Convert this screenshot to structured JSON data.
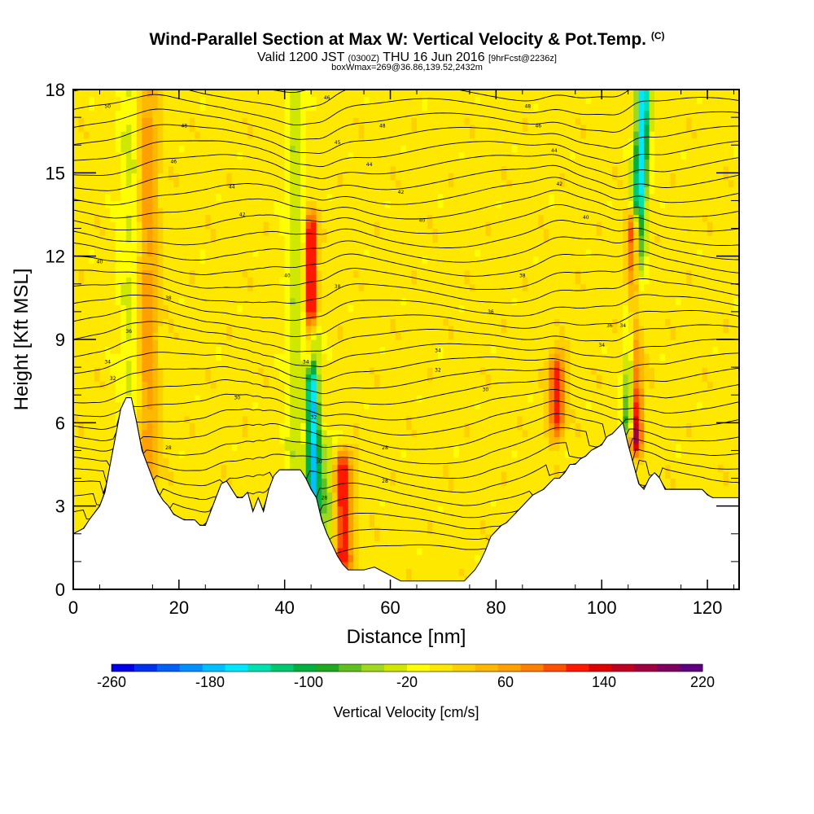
{
  "header": {
    "title": "Wind-Parallel Section at Max W: Vertical Velocity & Pot.Temp.",
    "title_mark": "(C)",
    "valid_prefix": "Valid 1200 JST",
    "valid_utc": "(0300Z)",
    "valid_date": "THU 16 Jun 2016",
    "forecast": "[9hrFcst@2236z]",
    "boxline": "boxWmax=269@36.86,139.52,2432m"
  },
  "chart_data": {
    "type": "heatmap",
    "xlabel": "Distance [nm]",
    "ylabel": "Height [Kft MSL]",
    "xlim": [
      0,
      126
    ],
    "ylim": [
      0,
      18
    ],
    "x_ticks": [
      "0",
      "20",
      "40",
      "60",
      "80",
      "100",
      "120"
    ],
    "y_ticks": [
      "0",
      "3",
      "6",
      "9",
      "12",
      "15",
      "18"
    ],
    "x_tick_values": [
      0,
      20,
      40,
      60,
      80,
      100,
      120
    ],
    "y_tick_values": [
      0,
      3,
      6,
      9,
      12,
      15,
      18
    ],
    "background_field": "Vertical Velocity [cm/s]",
    "contours": "Pot.Temp.",
    "terrain": [
      [
        0,
        2
      ],
      [
        2,
        2.2
      ],
      [
        3,
        2.5
      ],
      [
        5,
        3
      ],
      [
        6,
        3.5
      ],
      [
        7,
        4.5
      ],
      [
        8,
        5.5
      ],
      [
        9,
        6.5
      ],
      [
        10,
        6.9
      ],
      [
        11,
        6.9
      ],
      [
        12,
        6
      ],
      [
        13,
        5
      ],
      [
        14,
        4.5
      ],
      [
        15,
        4
      ],
      [
        16,
        3.5
      ],
      [
        17,
        3.2
      ],
      [
        18,
        3
      ],
      [
        19,
        2.7
      ],
      [
        21,
        2.5
      ],
      [
        23,
        2.5
      ],
      [
        24,
        2.3
      ],
      [
        25,
        2.3
      ],
      [
        26,
        2.8
      ],
      [
        27,
        3.3
      ],
      [
        28,
        3.8
      ],
      [
        29,
        3.9
      ],
      [
        30,
        3.6
      ],
      [
        31,
        3.3
      ],
      [
        32,
        3.3
      ],
      [
        33,
        3.5
      ],
      [
        34,
        2.8
      ],
      [
        35,
        3.3
      ],
      [
        36,
        2.8
      ],
      [
        37,
        3.6
      ],
      [
        38,
        4.1
      ],
      [
        39,
        4.3
      ],
      [
        41,
        4.3
      ],
      [
        43,
        4.3
      ],
      [
        44,
        4
      ],
      [
        45,
        3.6
      ],
      [
        46,
        3.3
      ],
      [
        47,
        2.5
      ],
      [
        48,
        2
      ],
      [
        49,
        1.6
      ],
      [
        50,
        1.2
      ],
      [
        51,
        0.9
      ],
      [
        52,
        0.7
      ],
      [
        53,
        0.7
      ],
      [
        55,
        0.7
      ],
      [
        57,
        0.8
      ],
      [
        59,
        0.6
      ],
      [
        60,
        0.5
      ],
      [
        61,
        0.4
      ],
      [
        62,
        0.3
      ],
      [
        64,
        0.3
      ],
      [
        66,
        0.3
      ],
      [
        68,
        0.3
      ],
      [
        70,
        0.3
      ],
      [
        72,
        0.3
      ],
      [
        74,
        0.3
      ],
      [
        75,
        0.5
      ],
      [
        76,
        0.7
      ],
      [
        77,
        1
      ],
      [
        78,
        1.4
      ],
      [
        79,
        1.9
      ],
      [
        80,
        2.1
      ],
      [
        81,
        2.3
      ],
      [
        82,
        2.4
      ],
      [
        83,
        2.6
      ],
      [
        84,
        2.8
      ],
      [
        85,
        3
      ],
      [
        86,
        3.2
      ],
      [
        87,
        3.4
      ],
      [
        88,
        3.5
      ],
      [
        89,
        3.6
      ],
      [
        90,
        3.8
      ],
      [
        91,
        4
      ],
      [
        92,
        4
      ],
      [
        93,
        4.2
      ],
      [
        94,
        4.5
      ],
      [
        95,
        4.5
      ],
      [
        96,
        4.7
      ],
      [
        97,
        4.8
      ],
      [
        98,
        5
      ],
      [
        99,
        5.1
      ],
      [
        100,
        5.2
      ],
      [
        101,
        5.5
      ],
      [
        102,
        5.6
      ],
      [
        103,
        5.8
      ],
      [
        104,
        6
      ],
      [
        105,
        5.2
      ],
      [
        106,
        4.5
      ],
      [
        107,
        3.8
      ],
      [
        108,
        3.6
      ],
      [
        109,
        4
      ],
      [
        110,
        4.2
      ],
      [
        111,
        4
      ],
      [
        112,
        3.6
      ],
      [
        113,
        3.6
      ],
      [
        115,
        3.6
      ],
      [
        117,
        3.6
      ],
      [
        119,
        3.6
      ],
      [
        120,
        3.4
      ],
      [
        121,
        3.3
      ],
      [
        123,
        3.3
      ],
      [
        126,
        3.3
      ]
    ],
    "bands": [
      {
        "x": 11,
        "x_top": 11,
        "half_width": 2.2,
        "intensity": -35
      },
      {
        "x": 14,
        "x_top": 14,
        "half_width": 2.0,
        "intensity": 60
      },
      {
        "x": 45.5,
        "x_top": 45,
        "half_width": 1.2,
        "intensity": -170,
        "y0": 3,
        "y1": 9
      },
      {
        "x": 45,
        "x_top": 45,
        "half_width": 1.0,
        "intensity": 150,
        "y0": 8.5,
        "y1": 13
      },
      {
        "x": 48,
        "x_top": 48,
        "half_width": 2.0,
        "intensity": -60,
        "y0": 1.5,
        "y1": 5
      },
      {
        "x": 51,
        "x_top": 51,
        "half_width": 1.8,
        "intensity": 120,
        "y0": 1,
        "y1": 4.5
      },
      {
        "x": 104,
        "x_top": 108,
        "half_width": 1.3,
        "intensity": -170,
        "y0": 6,
        "y1": 18
      },
      {
        "x": 106.5,
        "x_top": 106,
        "half_width": 1.2,
        "intensity": 200,
        "y0": 5.5,
        "y1": 13
      },
      {
        "x": 91.5,
        "x_top": 91.5,
        "half_width": 1.5,
        "intensity": 110,
        "y0": 6,
        "y1": 8
      },
      {
        "x": 42,
        "x_top": 42,
        "half_width": 1.8,
        "intensity": -40
      }
    ],
    "contour_labels": [
      {
        "x": 6.5,
        "y": 17.4,
        "text": "50"
      },
      {
        "x": 21,
        "y": 16.7,
        "text": "48"
      },
      {
        "x": 19,
        "y": 15.4,
        "text": "46"
      },
      {
        "x": 30,
        "y": 14.5,
        "text": "44"
      },
      {
        "x": 32,
        "y": 13.5,
        "text": "42"
      },
      {
        "x": 5,
        "y": 11.8,
        "text": "40"
      },
      {
        "x": 18,
        "y": 10.5,
        "text": "38"
      },
      {
        "x": 10.5,
        "y": 9.3,
        "text": "36"
      },
      {
        "x": 6.5,
        "y": 8.2,
        "text": "34"
      },
      {
        "x": 7.5,
        "y": 7.6,
        "text": "32"
      },
      {
        "x": 31,
        "y": 6.9,
        "text": "30"
      },
      {
        "x": 18,
        "y": 5.1,
        "text": "28"
      },
      {
        "x": 40.5,
        "y": 11.3,
        "text": "40"
      },
      {
        "x": 48,
        "y": 17.7,
        "text": "46"
      },
      {
        "x": 50,
        "y": 16.1,
        "text": "45"
      },
      {
        "x": 58.5,
        "y": 16.7,
        "text": "48"
      },
      {
        "x": 56,
        "y": 15.3,
        "text": "44"
      },
      {
        "x": 62,
        "y": 14.3,
        "text": "42"
      },
      {
        "x": 66,
        "y": 13.3,
        "text": "40"
      },
      {
        "x": 50,
        "y": 10.9,
        "text": "38"
      },
      {
        "x": 44,
        "y": 8.2,
        "text": "34"
      },
      {
        "x": 45.5,
        "y": 6.2,
        "text": "32"
      },
      {
        "x": 46.5,
        "y": 4.6,
        "text": "30"
      },
      {
        "x": 47.5,
        "y": 3.3,
        "text": "28"
      },
      {
        "x": 59,
        "y": 5.1,
        "text": "28"
      },
      {
        "x": 59,
        "y": 3.9,
        "text": "28"
      },
      {
        "x": 86,
        "y": 17.4,
        "text": "48"
      },
      {
        "x": 88,
        "y": 16.7,
        "text": "46"
      },
      {
        "x": 91,
        "y": 15.8,
        "text": "44"
      },
      {
        "x": 92,
        "y": 14.6,
        "text": "42"
      },
      {
        "x": 97,
        "y": 13.4,
        "text": "40"
      },
      {
        "x": 85,
        "y": 11.3,
        "text": "38"
      },
      {
        "x": 79,
        "y": 10.0,
        "text": "36"
      },
      {
        "x": 69,
        "y": 8.6,
        "text": "34"
      },
      {
        "x": 69,
        "y": 7.9,
        "text": "32"
      },
      {
        "x": 78,
        "y": 7.2,
        "text": "30"
      },
      {
        "x": 101.5,
        "y": 9.5,
        "text": "36"
      },
      {
        "x": 104,
        "y": 9.5,
        "text": "34"
      },
      {
        "x": 100,
        "y": 8.8,
        "text": "34"
      }
    ]
  },
  "colorbar": {
    "title": "Vertical Velocity [cm/s]",
    "tick_labels": [
      "-260",
      "-180",
      "-100",
      "-20",
      "60",
      "140",
      "220"
    ],
    "range": [
      -260,
      220
    ],
    "colors": [
      "#0000e8",
      "#0030f0",
      "#0060f8",
      "#0090ff",
      "#00c0ff",
      "#00e8ff",
      "#00e0b0",
      "#00c870",
      "#00b040",
      "#20a820",
      "#60c020",
      "#a0d820",
      "#d0e800",
      "#ffff00",
      "#ffe800",
      "#ffd000",
      "#ffb800",
      "#ffa000",
      "#ff8000",
      "#ff5000",
      "#ff1800",
      "#e00000",
      "#c00020",
      "#a00040",
      "#800060",
      "#600080"
    ]
  }
}
